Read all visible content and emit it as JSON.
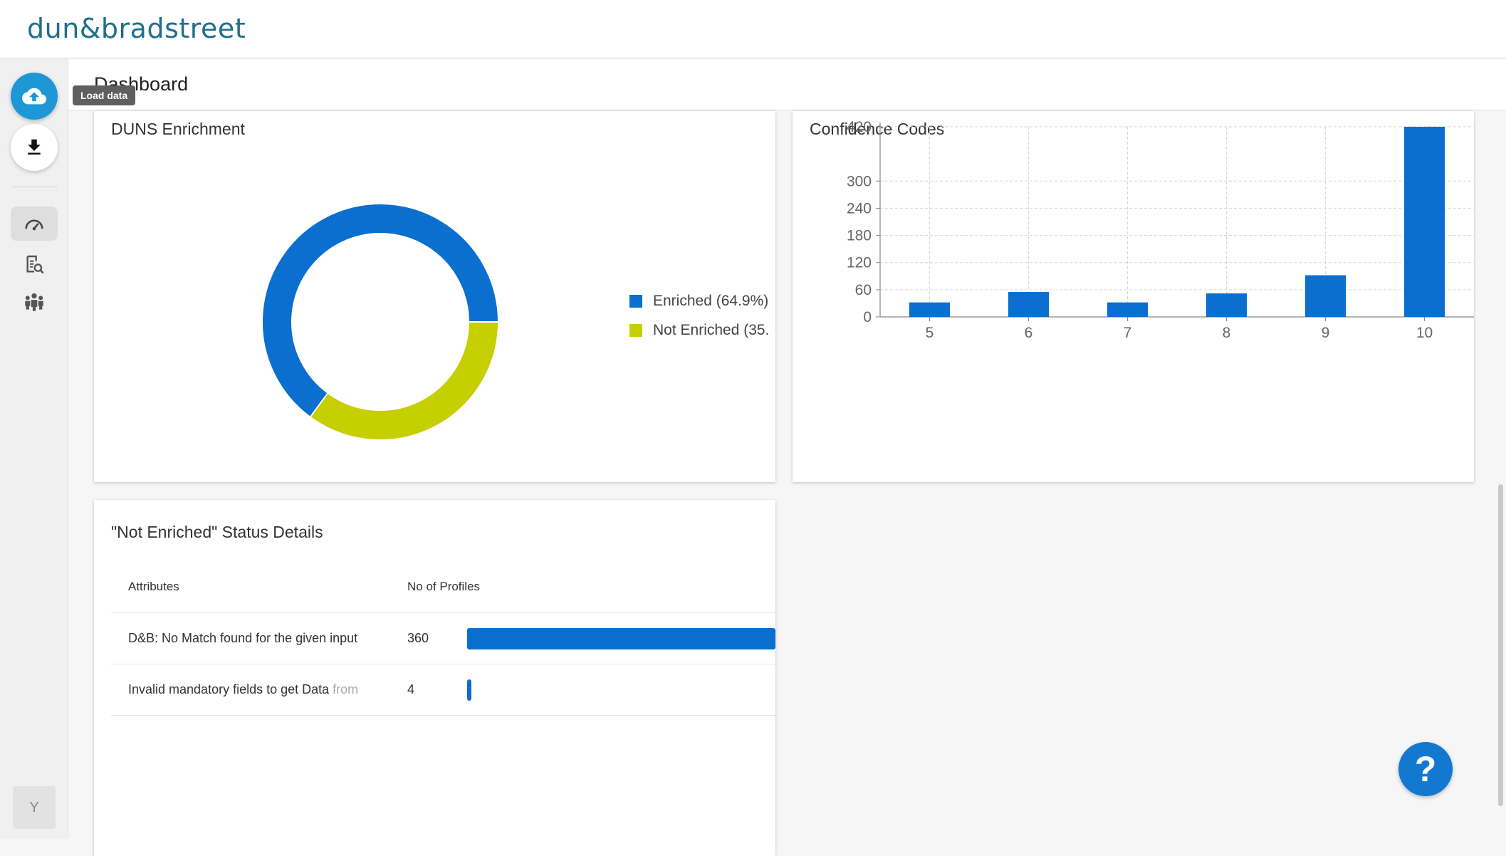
{
  "brand": {
    "logo_text": "dun&bradstreet"
  },
  "sidebar": {
    "upload_tooltip": "Load data",
    "avatar_initial": "Y"
  },
  "page": {
    "title": "Dashboard"
  },
  "duns_card": {
    "title": "DUNS Enrichment",
    "legend": [
      {
        "label": "Enriched (64.9%)",
        "color": "#0a6fcf"
      },
      {
        "label": "Not Enriched (35.",
        "color": "#c6cf00"
      }
    ],
    "chart_data": {
      "type": "pie",
      "categories": [
        "Enriched",
        "Not Enriched"
      ],
      "values": [
        64.9,
        35.1
      ],
      "colors": [
        "#0a6fcf",
        "#c6cf00"
      ]
    }
  },
  "confidence_card": {
    "title": "Confidence Codes",
    "chart_data": {
      "type": "bar",
      "categories": [
        "5",
        "6",
        "7",
        "8",
        "9",
        "10"
      ],
      "values": [
        32,
        55,
        32,
        52,
        92,
        420
      ],
      "ylim": [
        0,
        420
      ],
      "yticks": [
        "0",
        "60",
        "120",
        "180",
        "240",
        "300",
        "420"
      ],
      "grid": true,
      "color": "#0a6fcf"
    }
  },
  "not_enriched_card": {
    "title": "\"Not Enriched\" Status Details",
    "columns": [
      "Attributes",
      "No of Profiles"
    ],
    "rows": [
      {
        "label_main": "D&B: No Match found for the given input",
        "label_fade": " ",
        "count": "360",
        "value": 360
      },
      {
        "label_main": "Invalid mandatory fields to get Data ",
        "label_fade": "from",
        "count": "4",
        "value": 4
      }
    ],
    "max_value": 360
  },
  "help": {
    "label": "?"
  }
}
